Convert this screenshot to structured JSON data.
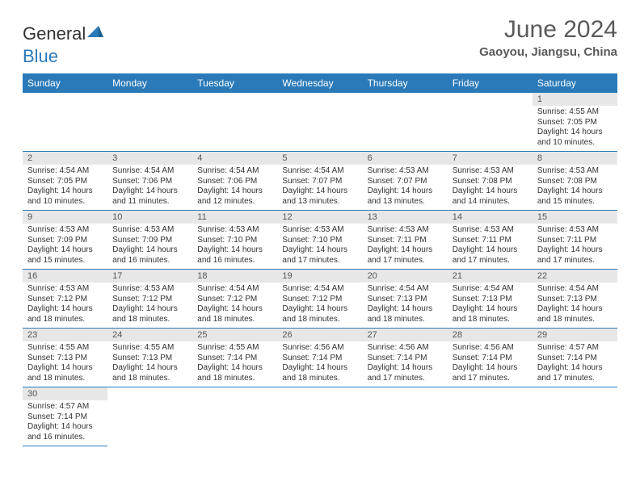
{
  "brand": {
    "part1": "General",
    "part2": "Blue"
  },
  "title": "June 2024",
  "location": "Gaoyou, Jiangsu, China",
  "colors": {
    "header_bg": "#2a7ab9",
    "header_fg": "#ffffff",
    "daynum_bg": "#e7e7e7",
    "row_border": "#2a7ab9",
    "text": "#333333",
    "title_color": "#5a5a5a"
  },
  "typography": {
    "title_fontsize": 30,
    "subtitle_fontsize": 15,
    "dayheader_fontsize": 12,
    "body_fontsize": 10
  },
  "weekdays": [
    "Sunday",
    "Monday",
    "Tuesday",
    "Wednesday",
    "Thursday",
    "Friday",
    "Saturday"
  ],
  "month": {
    "first_weekday_index": 6,
    "num_days": 30
  },
  "days": {
    "1": {
      "sunrise": "4:55 AM",
      "sunset": "7:05 PM",
      "daylight": "14 hours and 10 minutes."
    },
    "2": {
      "sunrise": "4:54 AM",
      "sunset": "7:05 PM",
      "daylight": "14 hours and 10 minutes."
    },
    "3": {
      "sunrise": "4:54 AM",
      "sunset": "7:06 PM",
      "daylight": "14 hours and 11 minutes."
    },
    "4": {
      "sunrise": "4:54 AM",
      "sunset": "7:06 PM",
      "daylight": "14 hours and 12 minutes."
    },
    "5": {
      "sunrise": "4:54 AM",
      "sunset": "7:07 PM",
      "daylight": "14 hours and 13 minutes."
    },
    "6": {
      "sunrise": "4:53 AM",
      "sunset": "7:07 PM",
      "daylight": "14 hours and 13 minutes."
    },
    "7": {
      "sunrise": "4:53 AM",
      "sunset": "7:08 PM",
      "daylight": "14 hours and 14 minutes."
    },
    "8": {
      "sunrise": "4:53 AM",
      "sunset": "7:08 PM",
      "daylight": "14 hours and 15 minutes."
    },
    "9": {
      "sunrise": "4:53 AM",
      "sunset": "7:09 PM",
      "daylight": "14 hours and 15 minutes."
    },
    "10": {
      "sunrise": "4:53 AM",
      "sunset": "7:09 PM",
      "daylight": "14 hours and 16 minutes."
    },
    "11": {
      "sunrise": "4:53 AM",
      "sunset": "7:10 PM",
      "daylight": "14 hours and 16 minutes."
    },
    "12": {
      "sunrise": "4:53 AM",
      "sunset": "7:10 PM",
      "daylight": "14 hours and 17 minutes."
    },
    "13": {
      "sunrise": "4:53 AM",
      "sunset": "7:11 PM",
      "daylight": "14 hours and 17 minutes."
    },
    "14": {
      "sunrise": "4:53 AM",
      "sunset": "7:11 PM",
      "daylight": "14 hours and 17 minutes."
    },
    "15": {
      "sunrise": "4:53 AM",
      "sunset": "7:11 PM",
      "daylight": "14 hours and 17 minutes."
    },
    "16": {
      "sunrise": "4:53 AM",
      "sunset": "7:12 PM",
      "daylight": "14 hours and 18 minutes."
    },
    "17": {
      "sunrise": "4:53 AM",
      "sunset": "7:12 PM",
      "daylight": "14 hours and 18 minutes."
    },
    "18": {
      "sunrise": "4:54 AM",
      "sunset": "7:12 PM",
      "daylight": "14 hours and 18 minutes."
    },
    "19": {
      "sunrise": "4:54 AM",
      "sunset": "7:12 PM",
      "daylight": "14 hours and 18 minutes."
    },
    "20": {
      "sunrise": "4:54 AM",
      "sunset": "7:13 PM",
      "daylight": "14 hours and 18 minutes."
    },
    "21": {
      "sunrise": "4:54 AM",
      "sunset": "7:13 PM",
      "daylight": "14 hours and 18 minutes."
    },
    "22": {
      "sunrise": "4:54 AM",
      "sunset": "7:13 PM",
      "daylight": "14 hours and 18 minutes."
    },
    "23": {
      "sunrise": "4:55 AM",
      "sunset": "7:13 PM",
      "daylight": "14 hours and 18 minutes."
    },
    "24": {
      "sunrise": "4:55 AM",
      "sunset": "7:13 PM",
      "daylight": "14 hours and 18 minutes."
    },
    "25": {
      "sunrise": "4:55 AM",
      "sunset": "7:14 PM",
      "daylight": "14 hours and 18 minutes."
    },
    "26": {
      "sunrise": "4:56 AM",
      "sunset": "7:14 PM",
      "daylight": "14 hours and 18 minutes."
    },
    "27": {
      "sunrise": "4:56 AM",
      "sunset": "7:14 PM",
      "daylight": "14 hours and 17 minutes."
    },
    "28": {
      "sunrise": "4:56 AM",
      "sunset": "7:14 PM",
      "daylight": "14 hours and 17 minutes."
    },
    "29": {
      "sunrise": "4:57 AM",
      "sunset": "7:14 PM",
      "daylight": "14 hours and 17 minutes."
    },
    "30": {
      "sunrise": "4:57 AM",
      "sunset": "7:14 PM",
      "daylight": "14 hours and 16 minutes."
    }
  },
  "labels": {
    "sunrise_prefix": "Sunrise: ",
    "sunset_prefix": "Sunset: ",
    "daylight_prefix": "Daylight: "
  }
}
